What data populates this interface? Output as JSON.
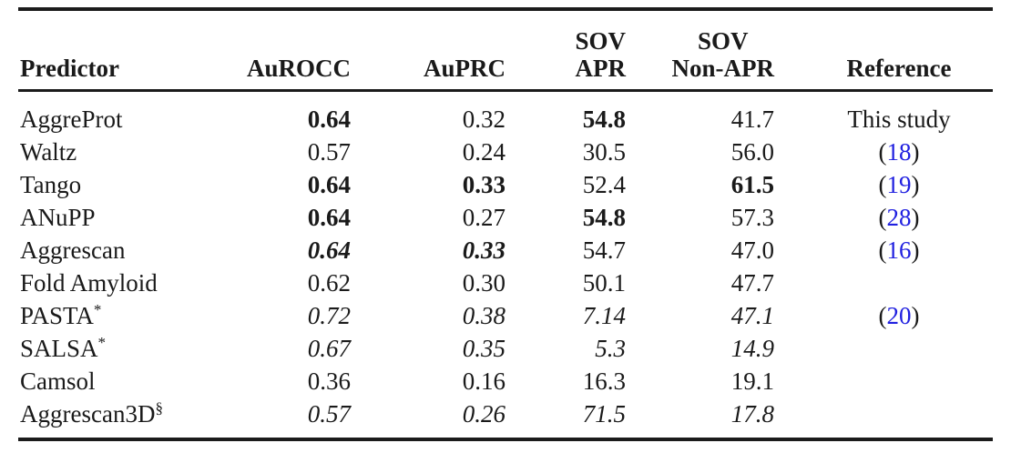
{
  "page": {
    "background_color": "#ffffff",
    "text_color": "#1a1a1a",
    "rule_color": "#1b1b1b",
    "citation_color": "#2020e0"
  },
  "table": {
    "columns": [
      {
        "id": "predictor",
        "align": "left",
        "label_lines": [
          "Predictor"
        ]
      },
      {
        "id": "aurocc",
        "align": "right",
        "label_lines": [
          "AuROCC"
        ]
      },
      {
        "id": "auprc",
        "align": "right",
        "label_lines": [
          "AuPRC"
        ]
      },
      {
        "id": "sov_apr",
        "align": "right",
        "label_lines": [
          "SOV",
          "APR"
        ]
      },
      {
        "id": "sov_non_apr",
        "align": "right",
        "label_lines": [
          "SOV",
          "Non-APR"
        ]
      },
      {
        "id": "reference",
        "align": "center",
        "label_lines": [
          "Reference"
        ]
      }
    ],
    "rows": [
      {
        "predictor": {
          "text": "AggreProt",
          "sup": ""
        },
        "values": [
          {
            "text": "0.64",
            "emphasis": "bold"
          },
          {
            "text": "0.32",
            "emphasis": "normal"
          },
          {
            "text": "54.8",
            "emphasis": "bold"
          },
          {
            "text": "41.7",
            "emphasis": "normal"
          }
        ],
        "reference": {
          "kind": "text",
          "text": "This study"
        }
      },
      {
        "predictor": {
          "text": "Waltz",
          "sup": ""
        },
        "values": [
          {
            "text": "0.57",
            "emphasis": "normal"
          },
          {
            "text": "0.24",
            "emphasis": "normal"
          },
          {
            "text": "30.5",
            "emphasis": "normal"
          },
          {
            "text": "56.0",
            "emphasis": "normal"
          }
        ],
        "reference": {
          "kind": "citation",
          "open": "(",
          "number": "18",
          "close": ")"
        }
      },
      {
        "predictor": {
          "text": "Tango",
          "sup": ""
        },
        "values": [
          {
            "text": "0.64",
            "emphasis": "bold"
          },
          {
            "text": "0.33",
            "emphasis": "bold"
          },
          {
            "text": "52.4",
            "emphasis": "normal"
          },
          {
            "text": "61.5",
            "emphasis": "bold"
          }
        ],
        "reference": {
          "kind": "citation",
          "open": "(",
          "number": "19",
          "close": ")"
        }
      },
      {
        "predictor": {
          "text": "ANuPP",
          "sup": ""
        },
        "values": [
          {
            "text": "0.64",
            "emphasis": "bold"
          },
          {
            "text": "0.27",
            "emphasis": "normal"
          },
          {
            "text": "54.8",
            "emphasis": "bold"
          },
          {
            "text": "57.3",
            "emphasis": "normal"
          }
        ],
        "reference": {
          "kind": "citation",
          "open": "(",
          "number": "28",
          "close": ")"
        }
      },
      {
        "predictor": {
          "text": "Aggrescan",
          "sup": ""
        },
        "values": [
          {
            "text": "0.64",
            "emphasis": "bold-italic"
          },
          {
            "text": "0.33",
            "emphasis": "bold-italic"
          },
          {
            "text": "54.7",
            "emphasis": "normal"
          },
          {
            "text": "47.0",
            "emphasis": "normal"
          }
        ],
        "reference": {
          "kind": "citation",
          "open": "(",
          "number": "16",
          "close": ")"
        }
      },
      {
        "predictor": {
          "text": "Fold Amyloid",
          "sup": ""
        },
        "values": [
          {
            "text": "0.62",
            "emphasis": "normal"
          },
          {
            "text": "0.30",
            "emphasis": "normal"
          },
          {
            "text": "50.1",
            "emphasis": "normal"
          },
          {
            "text": "47.7",
            "emphasis": "normal"
          }
        ],
        "reference": null
      },
      {
        "predictor": {
          "text": "PASTA",
          "sup": "*"
        },
        "values": [
          {
            "text": "0.72",
            "emphasis": "italic"
          },
          {
            "text": "0.38",
            "emphasis": "italic"
          },
          {
            "text": "7.14",
            "emphasis": "italic"
          },
          {
            "text": "47.1",
            "emphasis": "italic"
          }
        ],
        "reference": {
          "kind": "citation",
          "open": "(",
          "number": "20",
          "close": ")"
        }
      },
      {
        "predictor": {
          "text": "SALSA",
          "sup": "*"
        },
        "values": [
          {
            "text": "0.67",
            "emphasis": "italic"
          },
          {
            "text": "0.35",
            "emphasis": "italic"
          },
          {
            "text": "5.3",
            "emphasis": "italic"
          },
          {
            "text": "14.9",
            "emphasis": "italic"
          }
        ],
        "reference": null
      },
      {
        "predictor": {
          "text": "Camsol",
          "sup": ""
        },
        "values": [
          {
            "text": "0.36",
            "emphasis": "normal"
          },
          {
            "text": "0.16",
            "emphasis": "normal"
          },
          {
            "text": "16.3",
            "emphasis": "normal"
          },
          {
            "text": "19.1",
            "emphasis": "normal"
          }
        ],
        "reference": null
      },
      {
        "predictor": {
          "text": "Aggrescan3D",
          "sup": "§"
        },
        "values": [
          {
            "text": "0.57",
            "emphasis": "italic"
          },
          {
            "text": "0.26",
            "emphasis": "italic"
          },
          {
            "text": "71.5",
            "emphasis": "italic"
          },
          {
            "text": "17.8",
            "emphasis": "italic"
          }
        ],
        "reference": null
      }
    ]
  }
}
